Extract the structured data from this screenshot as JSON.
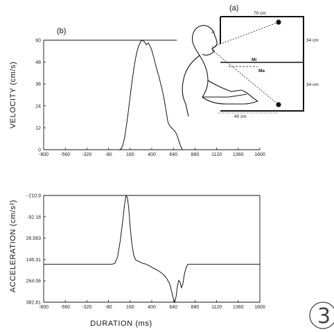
{
  "panel_b_label": "(b)",
  "panel_a_label": "(a)",
  "page_number": "3",
  "setup": {
    "width_label": "70 cm",
    "height_top_label": "34 cm",
    "height_bottom_label": "34 cm",
    "reach_label": "40 cm",
    "mirror_top_label": "Mi",
    "mirror_bottom_label": "Ma"
  },
  "chart_data": [
    {
      "type": "line",
      "ylabel": "VELOCITY (cm/s)",
      "xlabel": "",
      "xlim": [
        -800,
        1600
      ],
      "ylim": [
        0,
        60
      ],
      "x_ticks": [
        "-800",
        "-560",
        "-320",
        "-80",
        "160",
        "400",
        "640",
        "880",
        "1120",
        "1360",
        "1600"
      ],
      "y_ticks": [
        "0",
        "12",
        "24",
        "36",
        "48",
        "60"
      ],
      "series": [
        {
          "x": [
            40,
            60,
            80,
            100,
            120,
            140,
            160,
            180,
            200,
            220,
            240,
            260,
            280,
            300,
            320,
            340,
            360,
            380,
            400,
            420,
            440,
            460,
            480,
            500,
            520,
            540,
            560,
            580,
            600,
            620,
            640,
            660,
            680,
            700,
            720,
            740
          ],
          "y": [
            0,
            0.5,
            2.5,
            7,
            13.5,
            21,
            29,
            37,
            44,
            50,
            54.5,
            57.5,
            59.5,
            60,
            59,
            57.5,
            58.5,
            57,
            54.5,
            51,
            47,
            43.5,
            40,
            36,
            32,
            27,
            21,
            15,
            13,
            12,
            11,
            10,
            8,
            5,
            2,
            0
          ]
        }
      ]
    },
    {
      "type": "line",
      "ylabel": "ACCELERATION (cm/s²)",
      "xlabel": "DURATION (ms)",
      "xlim": [
        -800,
        1600
      ],
      "ylim": [
        -210.9,
        382.81
      ],
      "x_ticks": [
        "-800",
        "-560",
        "-320",
        "-80",
        "160",
        "400",
        "640",
        "880",
        "1120",
        "1360",
        "1600"
      ],
      "y_ticks": [
        "382.81",
        "264.06",
        "145.31",
        "26.563",
        "-92.18",
        "-210.9"
      ],
      "series": [
        {
          "x": [
            -800,
            -40,
            -10,
            20,
            50,
            80,
            100,
            115,
            130,
            145,
            160,
            180,
            200,
            220,
            240,
            260,
            280,
            300,
            340,
            380,
            420,
            460,
            500,
            540,
            570,
            600,
            620,
            640,
            655,
            670,
            685,
            700,
            715,
            730,
            745,
            760,
            780,
            800,
            1600
          ],
          "y": [
            0,
            0,
            5,
            40,
            130,
            250,
            340,
            382,
            370,
            310,
            210,
            110,
            50,
            25,
            20,
            15,
            10,
            5,
            0,
            -10,
            -22,
            -32,
            -45,
            -62,
            -82,
            -110,
            -150,
            -190,
            -210,
            -180,
            -120,
            -90,
            -100,
            -130,
            -110,
            -60,
            -20,
            0,
            0
          ]
        }
      ]
    }
  ]
}
